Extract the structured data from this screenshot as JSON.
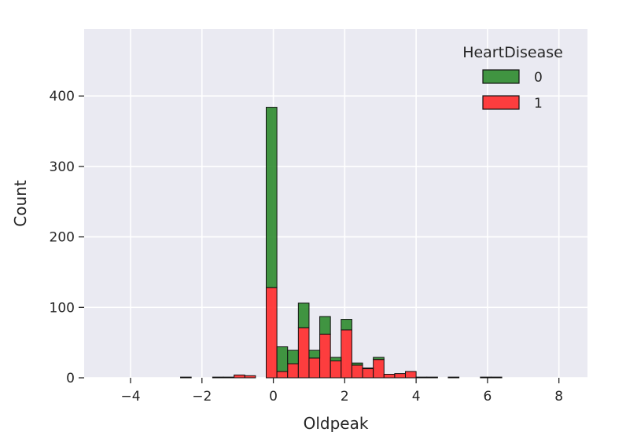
{
  "chart_data": {
    "type": "histogram",
    "multiple": "stack",
    "xlabel": "Oldpeak",
    "ylabel": "Count",
    "xlim": [
      -5.3,
      8.8
    ],
    "ylim": [
      0,
      495
    ],
    "xticks": [
      -4,
      -2,
      0,
      2,
      4,
      6,
      8
    ],
    "yticks": [
      0,
      100,
      200,
      300,
      400
    ],
    "grid": true,
    "legend": {
      "title": "HeartDisease",
      "position": "top-right",
      "entries": [
        {
          "label": "0",
          "color": "#2e8b2e"
        },
        {
          "label": "1",
          "color": "#ff2a2a"
        }
      ]
    },
    "bin_edges": [
      -2.6,
      -2.3,
      -2.0,
      -1.7,
      -1.4,
      -1.1,
      -0.8,
      -0.5,
      -0.2,
      0.1,
      0.4,
      0.7,
      1.0,
      1.3,
      1.6,
      1.9,
      2.2,
      2.5,
      2.8,
      3.1,
      3.4,
      3.7,
      4.0,
      4.3,
      4.6,
      4.9,
      5.2,
      5.5,
      5.8,
      6.1,
      6.4
    ],
    "series": [
      {
        "name": "1",
        "color": "#ff2a2a",
        "values": [
          1,
          0,
          0,
          1,
          1,
          4,
          3,
          0,
          128,
          9,
          20,
          71,
          28,
          62,
          24,
          68,
          18,
          13,
          26,
          5,
          6,
          9,
          1,
          1,
          0,
          1,
          0,
          0,
          1,
          1
        ]
      },
      {
        "name": "0",
        "color": "#2e8b2e",
        "values": [
          0,
          0,
          0,
          0,
          0,
          0,
          0,
          0,
          256,
          35,
          19,
          35,
          11,
          25,
          5,
          15,
          3,
          1,
          3,
          0,
          0,
          0,
          0,
          0,
          0,
          0,
          0,
          0,
          0,
          0
        ]
      }
    ]
  }
}
